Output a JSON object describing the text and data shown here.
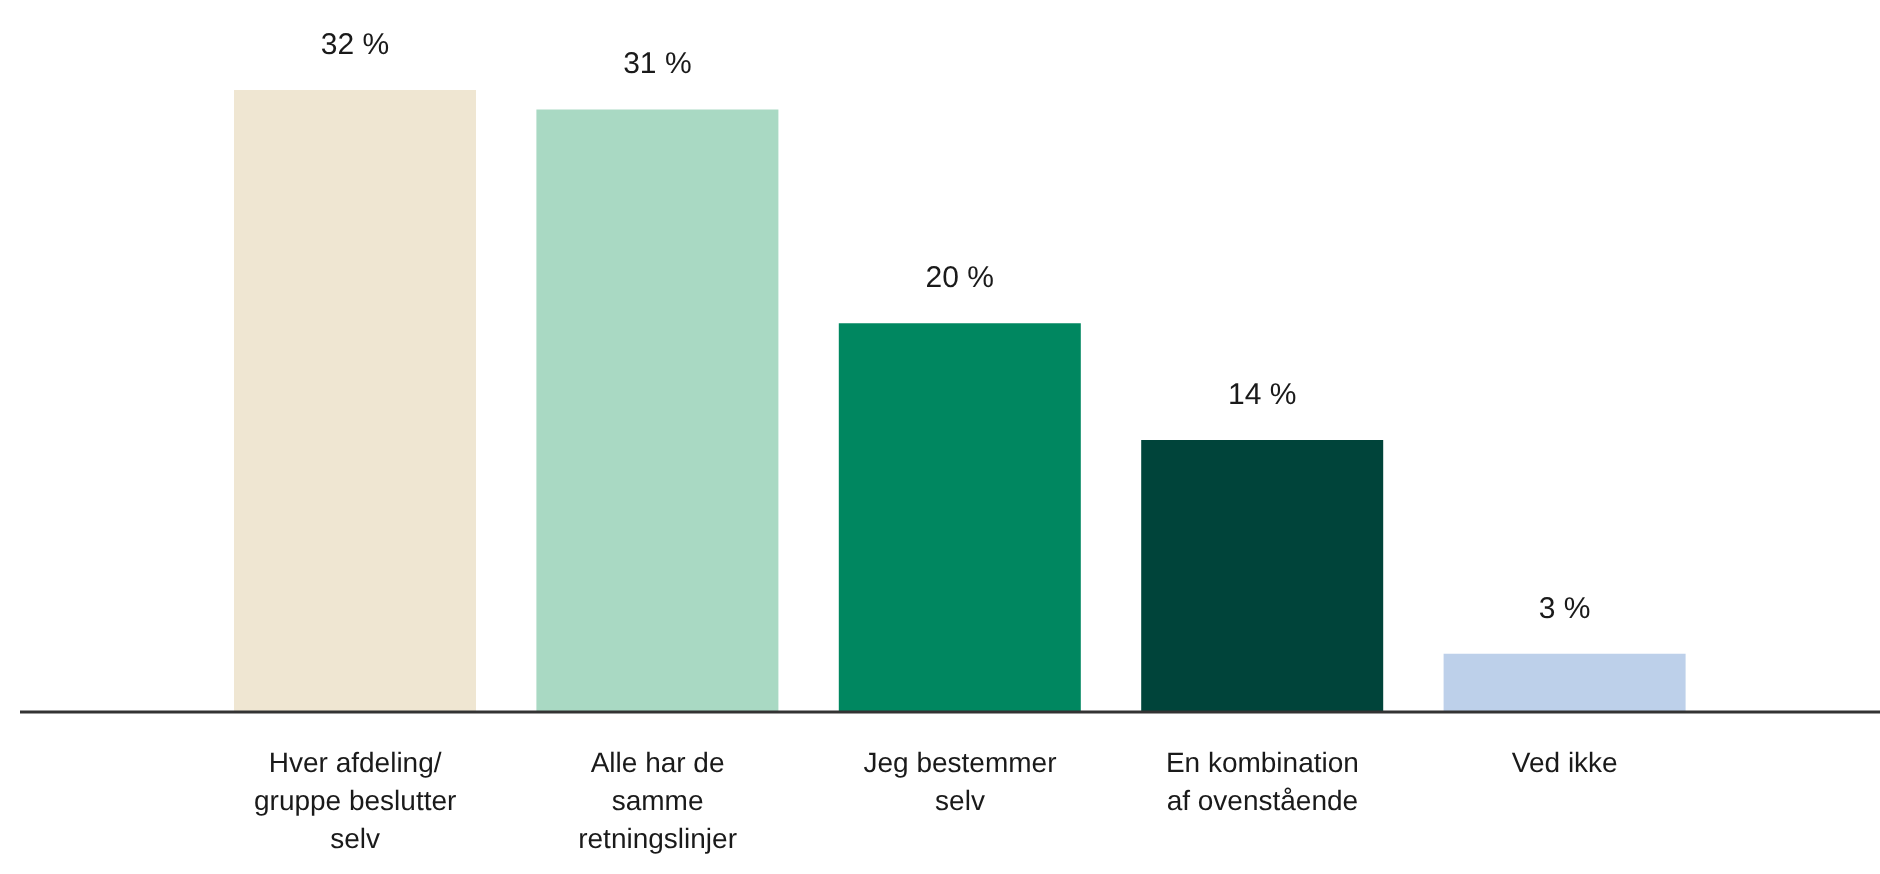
{
  "chart_data": {
    "type": "bar",
    "categories": [
      "Hver afdeling/ gruppe beslutter selv",
      "Alle har de samme retningslinjer",
      "Jeg bestemmer selv",
      "En kombination af ovenstående",
      "Ved ikke"
    ],
    "values": [
      32,
      31,
      20,
      14,
      3
    ],
    "colors": [
      "#efe6d2",
      "#a9d9c3",
      "#008760",
      "#00443a",
      "#bdd0ea"
    ],
    "value_labels": [
      "32 %",
      "31 %",
      "20 %",
      "14 %",
      "3 %"
    ],
    "grid": false,
    "legend": false
  }
}
